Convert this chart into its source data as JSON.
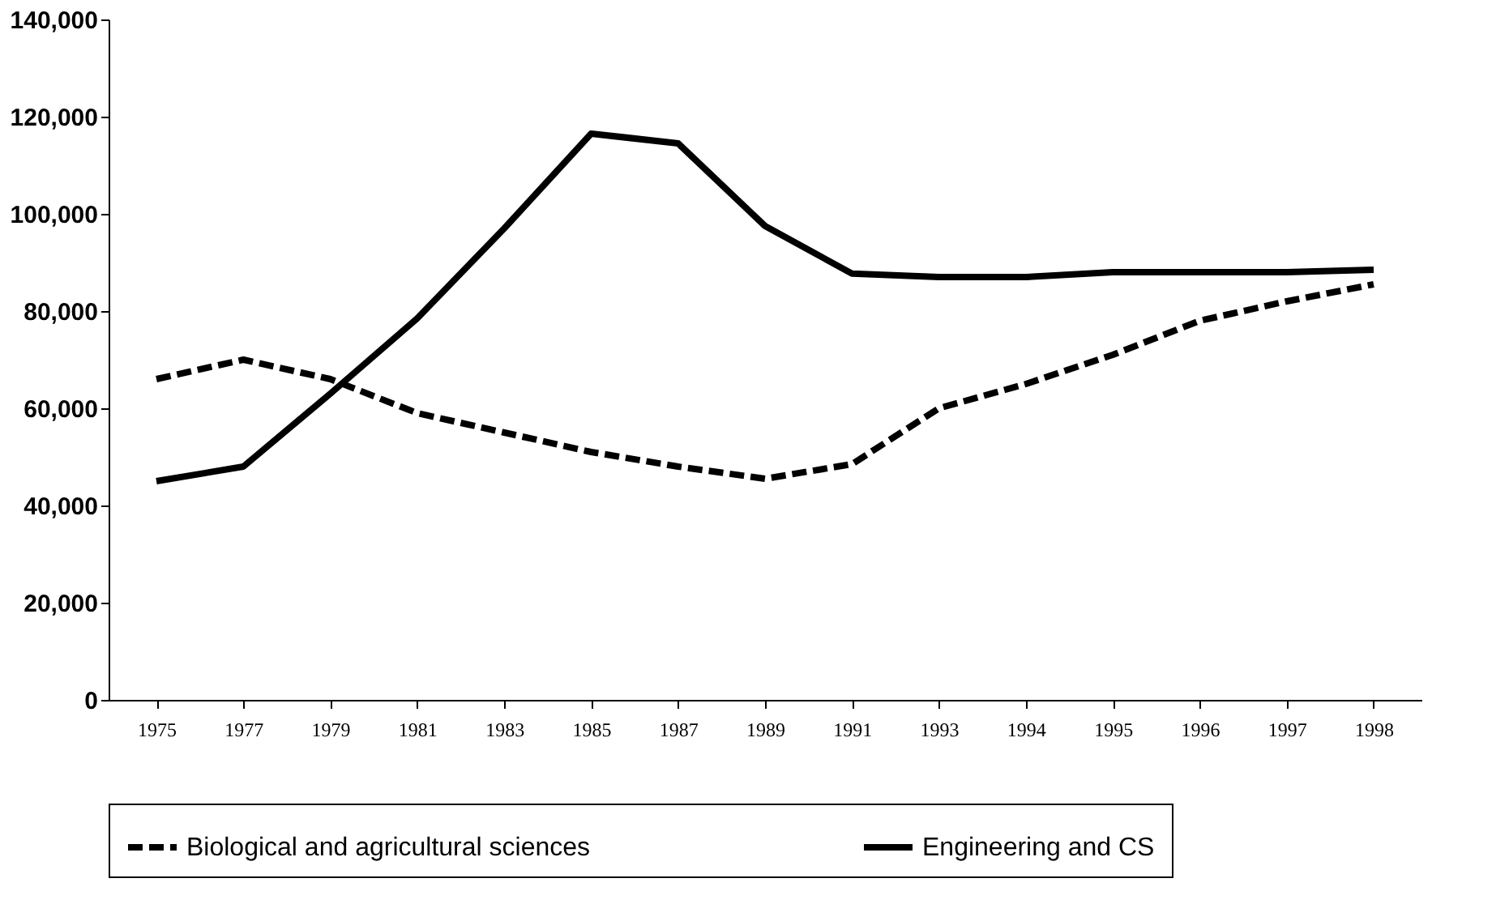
{
  "chart_data": {
    "type": "line",
    "categories": [
      "1975",
      "1977",
      "1979",
      "1981",
      "1983",
      "1985",
      "1987",
      "1989",
      "1991",
      "1993",
      "1994",
      "1995",
      "1996",
      "1997",
      "1998"
    ],
    "series": [
      {
        "name": "Biological and agricultural sciences",
        "color": "#000000",
        "line_style": "dashed",
        "values": [
          66000,
          70000,
          66000,
          59000,
          55000,
          51000,
          48000,
          45500,
          48500,
          60000,
          65000,
          71000,
          78000,
          82000,
          85500
        ]
      },
      {
        "name": "Engineering and CS",
        "color": "#000000",
        "line_style": "solid",
        "values": [
          45000,
          48000,
          63000,
          78500,
          97000,
          116500,
          114500,
          97500,
          87700,
          87000,
          87000,
          88000,
          88000,
          88000,
          88500
        ]
      }
    ],
    "ylim": [
      0,
      140000
    ],
    "yticks": [
      0,
      {
        "value": 20000,
        "label": "20,000"
      },
      {
        "value": 40000,
        "label": "40,000"
      },
      {
        "value": 60000,
        "label": "60,000"
      },
      {
        "value": 80000,
        "label": "80,000"
      },
      {
        "value": 100000,
        "label": "100,000"
      },
      {
        "value": 120000,
        "label": "120,000"
      },
      {
        "value": 140000,
        "label": "140,000"
      }
    ],
    "grid": false,
    "legend": "bottom",
    "marker": "none"
  }
}
